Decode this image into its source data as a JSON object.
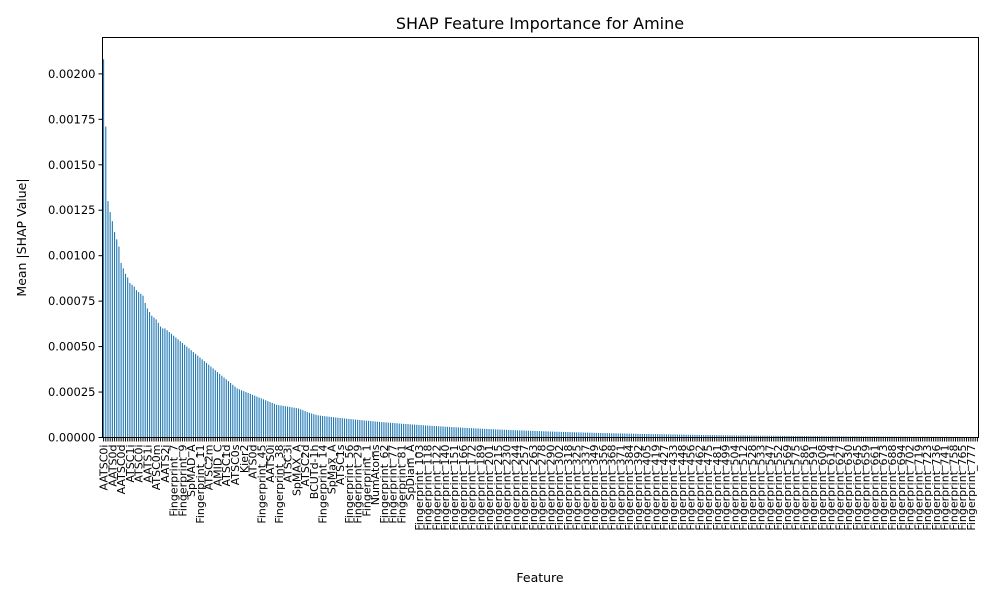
{
  "chart_data": {
    "type": "bar",
    "title": "SHAP Feature Importance for Amine",
    "xlabel": "Feature",
    "ylabel": "Mean |SHAP Value|",
    "ylim": [
      0,
      0.0022
    ],
    "yticks": [
      "0.00000",
      "0.00025",
      "0.00050",
      "0.00075",
      "0.00100",
      "0.00125",
      "0.00150",
      "0.00175",
      "0.00200"
    ],
    "grid": false,
    "color": "#1f77b4",
    "n_bars": 400,
    "categories": [
      "AATSC0i",
      "AATS0d",
      "AATSC0d",
      "ATSC1i",
      "ATSC0i",
      "AATS1i",
      "ATSC0m",
      "AATS2i",
      "Fingerprint_7",
      "Fingerprint_9",
      "SpMAD_A",
      "Fingerprint_11",
      "ATSC2m",
      "AMID_C",
      "ATSC1d",
      "ATSC0s",
      "Kier2",
      "ATS0d",
      "Fingerprint_45",
      "AATS0i",
      "Fingerprint_38",
      "ATSC3i",
      "SpMAX_A",
      "ATSC2d",
      "BCUTd-1h",
      "Fingerprint_14",
      "SpMax_A",
      "ATSC1s",
      "Fingerprint_56",
      "Fingerprint_29",
      "Fingerprint_1",
      "NumAtoms",
      "Fingerprint_62",
      "Fingerprint_77",
      "Fingerprint_81",
      "SpDiam_A",
      "Fingerprint_103",
      "Fingerprint_118",
      "Fingerprint_122",
      "Fingerprint_140",
      "Fingerprint_151",
      "Fingerprint_166",
      "Fingerprint_172",
      "Fingerprint_189",
      "Fingerprint_201",
      "Fingerprint_215",
      "Fingerprint_230",
      "Fingerprint_244",
      "Fingerprint_257",
      "Fingerprint_263",
      "Fingerprint_278",
      "Fingerprint_290",
      "Fingerprint_302",
      "Fingerprint_318",
      "Fingerprint_325",
      "Fingerprint_337",
      "Fingerprint_349",
      "Fingerprint_356",
      "Fingerprint_368",
      "Fingerprint_371",
      "Fingerprint_384",
      "Fingerprint_392",
      "Fingerprint_405",
      "Fingerprint_419",
      "Fingerprint_427",
      "Fingerprint_433",
      "Fingerprint_448",
      "Fingerprint_456",
      "Fingerprint_462",
      "Fingerprint_475",
      "Fingerprint_481",
      "Fingerprint_499",
      "Fingerprint_504",
      "Fingerprint_512",
      "Fingerprint_528",
      "Fingerprint_533",
      "Fingerprint_547",
      "Fingerprint_552",
      "Fingerprint_569",
      "Fingerprint_575",
      "Fingerprint_586",
      "Fingerprint_591",
      "Fingerprint_608",
      "Fingerprint_614",
      "Fingerprint_627",
      "Fingerprint_630",
      "Fingerprint_645",
      "Fingerprint_659",
      "Fingerprint_661",
      "Fingerprint_673",
      "Fingerprint_688",
      "Fingerprint_694",
      "Fingerprint_702",
      "Fingerprint_719",
      "Fingerprint_723",
      "Fingerprint_736",
      "Fingerprint_741",
      "Fingerprint_758",
      "Fingerprint_765",
      "Fingerprint_777"
    ],
    "values": [
      0.00208,
      0.00171,
      0.0013,
      0.00124,
      0.00119,
      0.00113,
      0.00109,
      0.00105,
      0.00096,
      0.00093,
      0.0009,
      0.00088,
      0.00085,
      0.00084,
      0.00083,
      0.00081,
      0.0008,
      0.00079,
      0.00078,
      0.00074,
      0.00071,
      0.00069,
      0.00067,
      0.00066,
      0.00065,
      0.00063,
      0.00061,
      0.0006,
      0.0006,
      0.00059,
      0.00058,
      0.00057,
      0.00056,
      0.00055,
      0.00054,
      0.00053,
      0.00052,
      0.00051,
      0.0005,
      0.00049,
      0.00048,
      0.00047,
      0.00046,
      0.00045,
      0.00044,
      0.00043,
      0.00042,
      0.00041,
      0.0004,
      0.00039,
      0.00038,
      0.00037,
      0.00036,
      0.00035,
      0.00034,
      0.00033,
      0.00032,
      0.00031,
      0.0003,
      0.00029,
      0.00028,
      0.00027,
      0.000265,
      0.00026,
      0.000255,
      0.00025,
      0.000245,
      0.00024,
      0.000235,
      0.00023,
      0.000225,
      0.00022,
      0.000215,
      0.00021,
      0.000205,
      0.0002,
      0.000195,
      0.00019,
      0.000185,
      0.00018,
      0.000178,
      0.000176,
      0.000174,
      0.000172,
      0.00017,
      0.000168,
      0.000166,
      0.000164,
      0.000162,
      0.00016,
      0.000155,
      0.00015,
      0.000145,
      0.00014,
      0.000136,
      0.000132,
      0.000128,
      0.000125,
      0.000122,
      0.00012
    ],
    "tail_start_value": 0.00012,
    "tail_end_value": 3e-06
  }
}
